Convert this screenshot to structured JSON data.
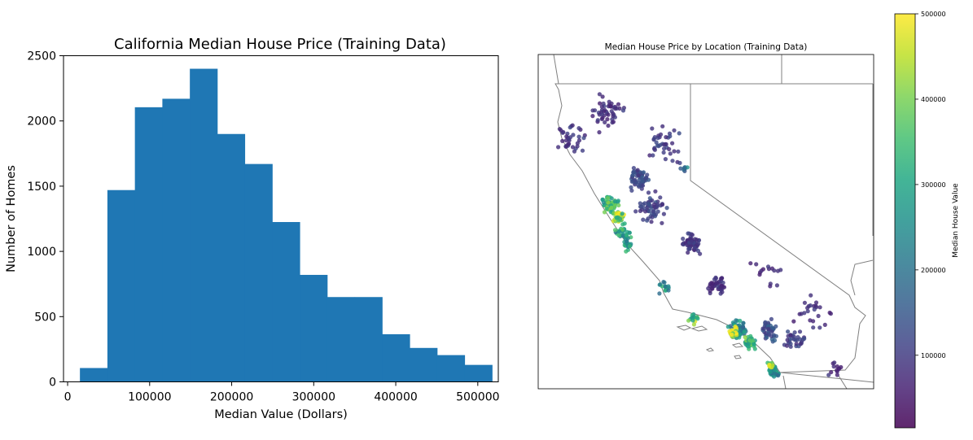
{
  "chart_data": [
    {
      "type": "bar",
      "title": "California Median House Price (Training Data)",
      "xlabel": "Median Value (Dollars)",
      "ylabel": "Number of Homes",
      "xlim": [
        -5000,
        525000
      ],
      "ylim": [
        0,
        2500
      ],
      "xticks": [
        "0",
        "100000",
        "200000",
        "300000",
        "400000",
        "500000"
      ],
      "yticks": [
        "0",
        "500",
        "1000",
        "1500",
        "2000",
        "2500"
      ],
      "color": "#1f77b4",
      "bins": [
        {
          "x0": 14999,
          "x1": 48499,
          "count": 106
        },
        {
          "x0": 48499,
          "x1": 81999,
          "count": 1470
        },
        {
          "x0": 81999,
          "x1": 115499,
          "count": 2105
        },
        {
          "x0": 115499,
          "x1": 148999,
          "count": 2170
        },
        {
          "x0": 148999,
          "x1": 182499,
          "count": 2400
        },
        {
          "x0": 182499,
          "x1": 215999,
          "count": 1900
        },
        {
          "x0": 215999,
          "x1": 249499,
          "count": 1670
        },
        {
          "x0": 249499,
          "x1": 282999,
          "count": 1225
        },
        {
          "x0": 282999,
          "x1": 316499,
          "count": 820
        },
        {
          "x0": 316499,
          "x1": 349999,
          "count": 650
        },
        {
          "x0": 349999,
          "x1": 383499,
          "count": 650
        },
        {
          "x0": 383499,
          "x1": 416999,
          "count": 365
        },
        {
          "x0": 416999,
          "x1": 450499,
          "count": 260
        },
        {
          "x0": 450499,
          "x1": 483999,
          "count": 205
        },
        {
          "x0": 483999,
          "x1": 517500,
          "count": 130
        }
      ]
    },
    {
      "type": "scatter",
      "title": "Median House Price by Location (Training Data)",
      "colorbar_label": "Median House Value",
      "colorbar_range": [
        15000,
        500001
      ],
      "colorbar_ticks": [
        "100000",
        "200000",
        "300000",
        "400000",
        "500000"
      ],
      "colormap": "viridis",
      "lon_range": [
        -124.6,
        -114.0
      ],
      "lat_range": [
        32.3,
        42.3
      ],
      "clusters": [
        {
          "lon": -122.3,
          "lat": 37.8,
          "value": 330000,
          "n": 60,
          "spread": 0.35
        },
        {
          "lon": -122.05,
          "lat": 37.4,
          "value": 420000,
          "n": 40,
          "spread": 0.25
        },
        {
          "lon": -121.9,
          "lat": 37.0,
          "value": 300000,
          "n": 30,
          "spread": 0.3
        },
        {
          "lon": -121.8,
          "lat": 36.6,
          "value": 270000,
          "n": 18,
          "spread": 0.25
        },
        {
          "lon": -121.4,
          "lat": 38.6,
          "value": 120000,
          "n": 60,
          "spread": 0.45
        },
        {
          "lon": -121.0,
          "lat": 37.7,
          "value": 110000,
          "n": 55,
          "spread": 0.6
        },
        {
          "lon": -119.8,
          "lat": 36.7,
          "value": 90000,
          "n": 55,
          "spread": 0.45
        },
        {
          "lon": -119.0,
          "lat": 35.4,
          "value": 80000,
          "n": 40,
          "spread": 0.4
        },
        {
          "lon": -122.5,
          "lat": 40.5,
          "value": 85000,
          "n": 50,
          "spread": 0.8
        },
        {
          "lon": -123.6,
          "lat": 39.8,
          "value": 95000,
          "n": 35,
          "spread": 0.7
        },
        {
          "lon": -120.6,
          "lat": 39.6,
          "value": 100000,
          "n": 40,
          "spread": 0.8
        },
        {
          "lon": -118.3,
          "lat": 34.05,
          "value": 240000,
          "n": 80,
          "spread": 0.35
        },
        {
          "lon": -118.45,
          "lat": 34.0,
          "value": 480000,
          "n": 35,
          "spread": 0.18
        },
        {
          "lon": -117.9,
          "lat": 33.7,
          "value": 330000,
          "n": 45,
          "spread": 0.25
        },
        {
          "lon": -117.3,
          "lat": 34.05,
          "value": 130000,
          "n": 45,
          "spread": 0.4
        },
        {
          "lon": -117.15,
          "lat": 32.8,
          "value": 250000,
          "n": 40,
          "spread": 0.22
        },
        {
          "lon": -117.25,
          "lat": 33.0,
          "value": 430000,
          "n": 15,
          "spread": 0.12
        },
        {
          "lon": -119.7,
          "lat": 34.4,
          "value": 380000,
          "n": 15,
          "spread": 0.2
        },
        {
          "lon": -120.6,
          "lat": 35.3,
          "value": 260000,
          "n": 15,
          "spread": 0.3
        },
        {
          "lon": -116.5,
          "lat": 33.8,
          "value": 110000,
          "n": 30,
          "spread": 0.5
        },
        {
          "lon": -116.0,
          "lat": 34.6,
          "value": 80000,
          "n": 25,
          "spread": 0.8
        },
        {
          "lon": -117.5,
          "lat": 35.8,
          "value": 75000,
          "n": 15,
          "spread": 0.7
        },
        {
          "lon": -115.2,
          "lat": 32.9,
          "value": 80000,
          "n": 12,
          "spread": 0.3
        },
        {
          "lon": -120.0,
          "lat": 38.9,
          "value": 200000,
          "n": 8,
          "spread": 0.15
        }
      ]
    }
  ]
}
